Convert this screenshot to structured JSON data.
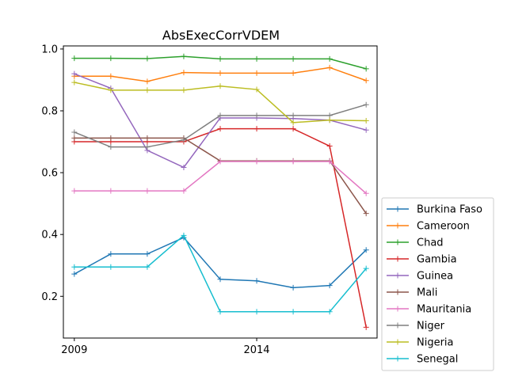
{
  "chart_data": {
    "type": "line",
    "title": "AbsExecCorrVDEM",
    "xlabel": "",
    "ylabel": "",
    "x": [
      2009,
      2010,
      2011,
      2012,
      2013,
      2014,
      2015,
      2016,
      2017
    ],
    "xlim": [
      2008.7,
      2017.3
    ],
    "ylim": [
      0.065,
      1.01
    ],
    "x_ticks": [
      2009,
      2014
    ],
    "y_ticks": [
      0.2,
      0.4,
      0.6,
      0.8,
      1.0
    ],
    "y_tick_labels": [
      "0.2",
      "0.4",
      "0.6",
      "0.8",
      "1.0"
    ],
    "grid": false,
    "legend_position": "outside-right-bottom",
    "series": [
      {
        "name": "Burkina Faso",
        "color": "#1f77b4",
        "values": [
          0.272,
          0.337,
          0.337,
          0.39,
          0.255,
          0.25,
          0.228,
          0.235,
          0.35
        ]
      },
      {
        "name": "Cameroon",
        "color": "#ff7f0e",
        "values": [
          0.912,
          0.912,
          0.895,
          0.924,
          0.922,
          0.922,
          0.922,
          0.94,
          0.898
        ]
      },
      {
        "name": "Chad",
        "color": "#2ca02c",
        "values": [
          0.97,
          0.97,
          0.969,
          0.976,
          0.968,
          0.968,
          0.968,
          0.968,
          0.936
        ]
      },
      {
        "name": "Gambia",
        "color": "#d62728",
        "values": [
          0.7,
          0.7,
          0.7,
          0.7,
          0.742,
          0.742,
          0.742,
          0.686,
          0.1
        ]
      },
      {
        "name": "Guinea",
        "color": "#9467bd",
        "values": [
          0.92,
          0.873,
          0.672,
          0.617,
          0.777,
          0.777,
          0.775,
          0.77,
          0.738
        ]
      },
      {
        "name": "Mali",
        "color": "#8c564b",
        "values": [
          0.712,
          0.712,
          0.712,
          0.712,
          0.638,
          0.638,
          0.638,
          0.638,
          0.468
        ]
      },
      {
        "name": "Mauritania",
        "color": "#e377c2",
        "values": [
          0.541,
          0.541,
          0.541,
          0.541,
          0.636,
          0.636,
          0.636,
          0.636,
          0.533
        ]
      },
      {
        "name": "Niger",
        "color": "#7f7f7f",
        "values": [
          0.731,
          0.683,
          0.683,
          0.706,
          0.785,
          0.785,
          0.785,
          0.785,
          0.82
        ]
      },
      {
        "name": "Nigeria",
        "color": "#bcbd22",
        "values": [
          0.892,
          0.867,
          0.867,
          0.867,
          0.88,
          0.869,
          0.762,
          0.77,
          0.768
        ]
      },
      {
        "name": "Senegal",
        "color": "#17becf",
        "values": [
          0.295,
          0.295,
          0.295,
          0.397,
          0.15,
          0.15,
          0.15,
          0.15,
          0.29
        ]
      }
    ]
  }
}
